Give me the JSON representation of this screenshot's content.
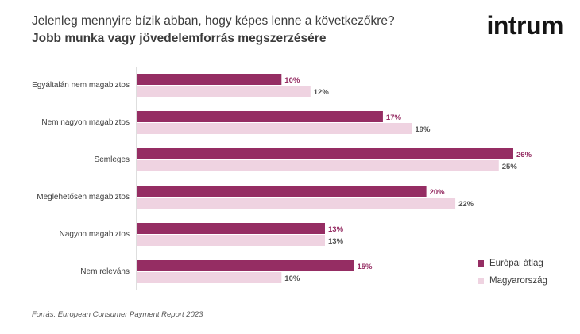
{
  "header": {
    "title": "Jelenleg mennyire bízik abban, hogy képes lenne a következőkre?",
    "subtitle": "Jobb munka vagy jövedelemforrás megszerzésére",
    "logo_text": "intrum"
  },
  "footer": {
    "source": "Forrás: European Consumer Payment Report 2023"
  },
  "colors": {
    "europe": "#952d63",
    "hungary": "#efd3e1",
    "europe_label": "#952d63",
    "hungary_label": "#555555"
  },
  "chart_data": {
    "type": "bar",
    "orientation": "horizontal",
    "categories": [
      "Egyáltalán nem magabiztos",
      "Nem nagyon magabiztos",
      "Semleges",
      "Meglehetősen magabiztos",
      "Nagyon magabiztos",
      "Nem releváns"
    ],
    "series": [
      {
        "name": "Európai átlag",
        "values": [
          10,
          17,
          26,
          20,
          13,
          15
        ]
      },
      {
        "name": "Magyarország",
        "values": [
          12,
          19,
          25,
          22,
          13,
          10
        ]
      }
    ],
    "value_suffix": "%",
    "xlim": [
      0,
      26
    ],
    "grid": false,
    "legend_position": "bottom-right"
  }
}
